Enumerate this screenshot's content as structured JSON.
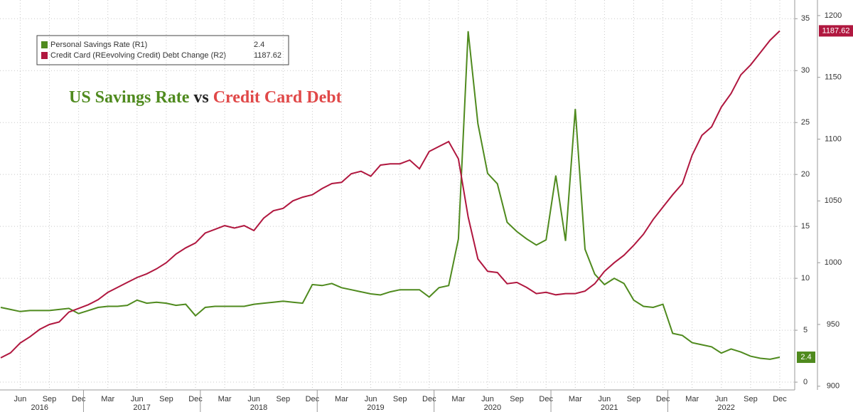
{
  "chart_data": {
    "type": "line",
    "title_parts": [
      {
        "text": "US Savings Rate",
        "color": "#4f8a1e"
      },
      {
        "text": "vs",
        "color": "#222222"
      },
      {
        "text": "Credit Card Debt",
        "color": "#e04848"
      }
    ],
    "x": [
      "2016-04",
      "2016-05",
      "2016-06",
      "2016-07",
      "2016-08",
      "2016-09",
      "2016-10",
      "2016-11",
      "2016-12",
      "2017-01",
      "2017-02",
      "2017-03",
      "2017-04",
      "2017-05",
      "2017-06",
      "2017-07",
      "2017-08",
      "2017-09",
      "2017-10",
      "2017-11",
      "2017-12",
      "2018-01",
      "2018-02",
      "2018-03",
      "2018-04",
      "2018-05",
      "2018-06",
      "2018-07",
      "2018-08",
      "2018-09",
      "2018-10",
      "2018-11",
      "2018-12",
      "2019-01",
      "2019-02",
      "2019-03",
      "2019-04",
      "2019-05",
      "2019-06",
      "2019-07",
      "2019-08",
      "2019-09",
      "2019-10",
      "2019-11",
      "2019-12",
      "2020-01",
      "2020-02",
      "2020-03",
      "2020-04",
      "2020-05",
      "2020-06",
      "2020-07",
      "2020-08",
      "2020-09",
      "2020-10",
      "2020-11",
      "2020-12",
      "2021-01",
      "2021-02",
      "2021-03",
      "2021-04",
      "2021-05",
      "2021-06",
      "2021-07",
      "2021-08",
      "2021-09",
      "2021-10",
      "2021-11",
      "2021-12",
      "2022-01",
      "2022-02",
      "2022-03",
      "2022-04",
      "2022-05",
      "2022-06",
      "2022-07",
      "2022-08",
      "2022-09",
      "2022-10",
      "2022-11",
      "2022-12"
    ],
    "xticks": [
      {
        "value": "2016-06",
        "label": "Jun"
      },
      {
        "value": "2016-09",
        "label": "Sep"
      },
      {
        "value": "2016-12",
        "label": "Dec"
      },
      {
        "value": "2017-03",
        "label": "Mar"
      },
      {
        "value": "2017-06",
        "label": "Jun"
      },
      {
        "value": "2017-09",
        "label": "Sep"
      },
      {
        "value": "2017-12",
        "label": "Dec"
      },
      {
        "value": "2018-03",
        "label": "Mar"
      },
      {
        "value": "2018-06",
        "label": "Jun"
      },
      {
        "value": "2018-09",
        "label": "Sep"
      },
      {
        "value": "2018-12",
        "label": "Dec"
      },
      {
        "value": "2019-03",
        "label": "Mar"
      },
      {
        "value": "2019-06",
        "label": "Jun"
      },
      {
        "value": "2019-09",
        "label": "Sep"
      },
      {
        "value": "2019-12",
        "label": "Dec"
      },
      {
        "value": "2020-03",
        "label": "Mar"
      },
      {
        "value": "2020-06",
        "label": "Jun"
      },
      {
        "value": "2020-09",
        "label": "Sep"
      },
      {
        "value": "2020-12",
        "label": "Dec"
      },
      {
        "value": "2021-03",
        "label": "Mar"
      },
      {
        "value": "2021-06",
        "label": "Jun"
      },
      {
        "value": "2021-09",
        "label": "Sep"
      },
      {
        "value": "2021-12",
        "label": "Dec"
      },
      {
        "value": "2022-03",
        "label": "Mar"
      },
      {
        "value": "2022-06",
        "label": "Jun"
      },
      {
        "value": "2022-09",
        "label": "Sep"
      },
      {
        "value": "2022-12",
        "label": "Dec"
      }
    ],
    "years": [
      "2016",
      "2017",
      "2018",
      "2019",
      "2020",
      "2021",
      "2022"
    ],
    "ylim": [
      -0.75,
      36.8
    ],
    "yticks": [
      0,
      5,
      10,
      15,
      20,
      25,
      30,
      35
    ],
    "y2lim": [
      897,
      1212.6
    ],
    "y2ticks": [
      900,
      950,
      1000,
      1050,
      1100,
      1150,
      1200
    ],
    "grid": true,
    "series": [
      {
        "name": "Personal Savings Rate (R1)",
        "color": "#4f8a1e",
        "axis": "y",
        "values": [
          7.2,
          7.0,
          6.8,
          6.9,
          6.9,
          6.9,
          7.0,
          7.1,
          6.6,
          6.9,
          7.2,
          7.3,
          7.3,
          7.4,
          7.9,
          7.6,
          7.7,
          7.6,
          7.4,
          7.5,
          6.4,
          7.2,
          7.3,
          7.3,
          7.3,
          7.3,
          7.5,
          7.6,
          7.7,
          7.8,
          7.7,
          7.6,
          9.4,
          9.3,
          9.5,
          9.1,
          8.9,
          8.7,
          8.5,
          8.4,
          8.7,
          8.9,
          8.9,
          8.9,
          8.2,
          9.1,
          9.3,
          13.8,
          33.8,
          24.9,
          20.1,
          19.1,
          15.4,
          14.5,
          13.8,
          13.2,
          13.7,
          19.9,
          13.6,
          26.3,
          12.8,
          10.4,
          9.4,
          10.0,
          9.5,
          7.9,
          7.3,
          7.2,
          7.5,
          4.7,
          4.5,
          3.8,
          3.6,
          3.4,
          2.8,
          3.2,
          2.9,
          2.5,
          2.3,
          2.2,
          2.4
        ]
      },
      {
        "name": "Credit Card (REevolving Credit) Debt Change (R2)",
        "color": "#b0173f",
        "axis": "y2",
        "values": [
          923,
          927,
          935,
          940,
          946,
          950,
          952,
          960,
          963,
          966,
          970,
          976,
          980,
          984,
          988,
          991,
          995,
          1000,
          1007,
          1012,
          1016,
          1024,
          1027,
          1030,
          1028,
          1030,
          1026,
          1036,
          1042,
          1044,
          1050,
          1053,
          1055,
          1060,
          1064,
          1065,
          1072,
          1074,
          1070,
          1079,
          1080,
          1080,
          1083,
          1076,
          1090,
          1094,
          1098,
          1084,
          1037,
          1003,
          993,
          992,
          983,
          984,
          980,
          975,
          976,
          974,
          975,
          975,
          977,
          983,
          993,
          1000,
          1006,
          1014,
          1023,
          1035,
          1045,
          1055,
          1064,
          1087,
          1103,
          1110,
          1126,
          1137,
          1152,
          1160,
          1170,
          1180,
          1187.62
        ]
      }
    ]
  }
}
